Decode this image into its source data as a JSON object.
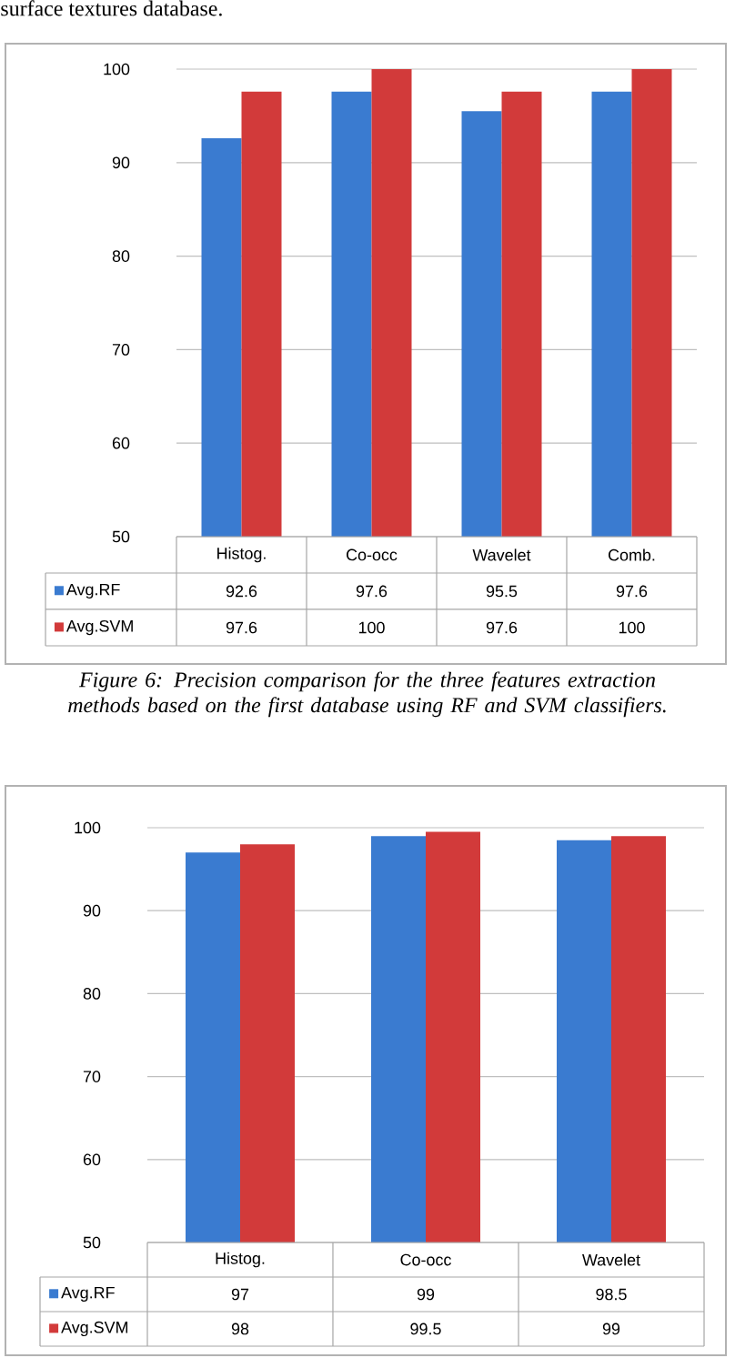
{
  "chart_data": [
    {
      "type": "bar",
      "annotations": [
        "surface textures database.",
        "Figure 6: Precision comparison for the three features extraction methods based on the first database using RF and SVM classifiers."
      ],
      "categories": [
        "Histog.",
        "Co-occ",
        "Wavelet",
        "Comb."
      ],
      "series": [
        {
          "name": "Avg.RF",
          "color": "#3a7bd0",
          "values": [
            92.6,
            97.6,
            95.5,
            97.6
          ]
        },
        {
          "name": "Avg.SVM",
          "color": "#d23a3a",
          "values": [
            97.6,
            100,
            97.6,
            100
          ]
        }
      ],
      "ylim": [
        50,
        100
      ],
      "yticks": [
        50,
        60,
        70,
        80,
        90,
        100
      ],
      "grid": "y",
      "legend": "bottom",
      "data_labels": true
    },
    {
      "type": "bar",
      "categories": [
        "Histog.",
        "Co-occ",
        "Wavelet"
      ],
      "series": [
        {
          "name": "Avg.RF",
          "color": "#3a7bd0",
          "values": [
            97,
            99,
            98.5
          ]
        },
        {
          "name": "Avg.SVM",
          "color": "#d23a3a",
          "values": [
            98,
            99.5,
            99
          ]
        }
      ],
      "ylim": [
        50,
        100
      ],
      "yticks": [
        50,
        60,
        70,
        80,
        90,
        100
      ],
      "grid": "y",
      "legend": "bottom",
      "data_labels": true
    }
  ]
}
